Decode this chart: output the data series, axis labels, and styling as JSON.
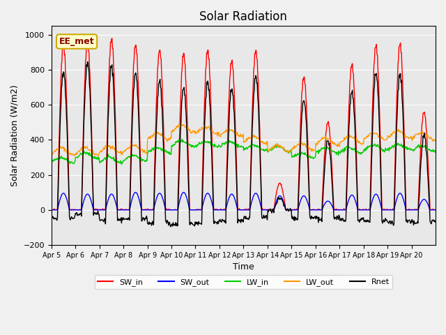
{
  "title": "Solar Radiation",
  "ylabel": "Solar Radiation (W/m2)",
  "xlabel": "Time",
  "annotation": "EE_met",
  "ylim": [
    -200,
    1050
  ],
  "axes_background": "#e8e8e8",
  "fig_background": "#f0f0f0",
  "colors": {
    "SW_in": "#ff0000",
    "SW_out": "#0000ff",
    "LW_in": "#00cc00",
    "LW_out": "#ff9900",
    "Rnet": "#000000"
  },
  "x_tick_labels": [
    "Apr 5",
    "Apr 6",
    "Apr 7",
    "Apr 8",
    "Apr 9",
    "Apr 10",
    "Apr 11",
    "Apr 12",
    "Apr 13",
    "Apr 14",
    "Apr 15",
    "Apr 16",
    "Apr 17",
    "Apr 18",
    "Apr 19",
    "Apr 20"
  ],
  "y_ticks": [
    -200,
    0,
    200,
    400,
    600,
    800,
    1000
  ],
  "sw_peaks": [
    940,
    960,
    975,
    940,
    915,
    890,
    910,
    850,
    910,
    150,
    760,
    500,
    830,
    940,
    950,
    560
  ],
  "sw_out_peaks": [
    95,
    90,
    90,
    100,
    95,
    100,
    95,
    90,
    95,
    80,
    80,
    50,
    85,
    90,
    95,
    60
  ],
  "lw_in_vals": [
    285,
    310,
    285,
    295,
    340,
    380,
    375,
    375,
    355,
    345,
    310,
    340,
    340,
    355,
    360,
    350
  ],
  "lw_out_vals": [
    335,
    335,
    345,
    350,
    420,
    465,
    455,
    440,
    400,
    350,
    360,
    390,
    400,
    420,
    430,
    420
  ],
  "days": 16,
  "points_per_day": 48
}
